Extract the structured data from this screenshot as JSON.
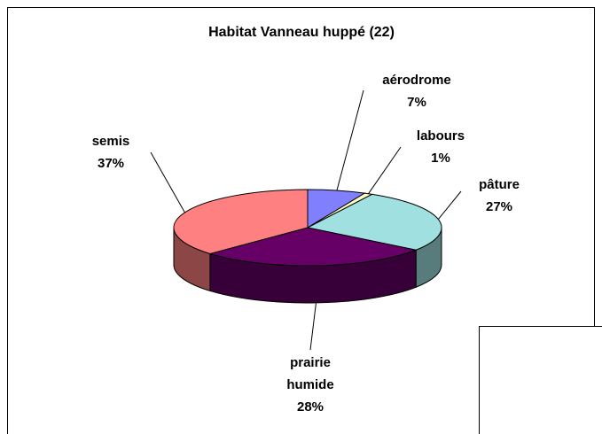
{
  "chart_data": {
    "type": "pie",
    "title": "Habitat Vanneau huppé (22)",
    "categories": [
      "aérodrome",
      "labours",
      "pâture",
      "prairie humide",
      "semis"
    ],
    "values": [
      7,
      1,
      27,
      28,
      37
    ],
    "value_labels": [
      "7%",
      "1%",
      "27%",
      "28%",
      "37%"
    ],
    "colors": [
      "#8080ff",
      "#ffffc0",
      "#a0e0e0",
      "#660066",
      "#ff8080"
    ]
  }
}
